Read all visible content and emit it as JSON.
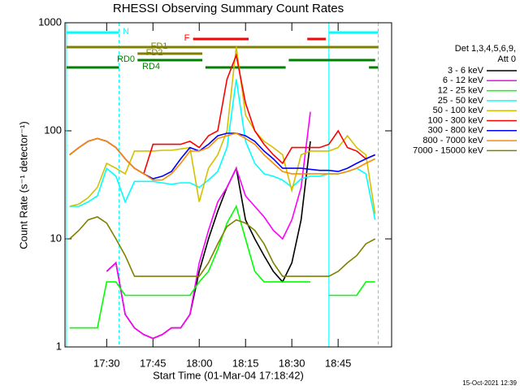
{
  "chart_data": {
    "type": "line",
    "title": "RHESSI Observing Summary Count Rates",
    "x_label": "Start Time (01-Mar-04 17:18:42)",
    "y_label": "Count Rate (s⁻¹ detector⁻¹)",
    "legend_header": [
      "Det 1,3,4,5,6,9,",
      "Att 0"
    ],
    "timestamp": "15-Oct-2021 12:39",
    "log_y": true,
    "xlim": [
      "17:16:30",
      "19:02:20"
    ],
    "xticks": [
      "17:30",
      "17:45",
      "18:00",
      "18:15",
      "18:30",
      "18:45"
    ],
    "ylim": [
      1,
      1000
    ],
    "yticks": [
      1,
      10,
      100,
      1000
    ],
    "x": [
      "17:18",
      "17:21",
      "17:24",
      "17:27",
      "17:30",
      "17:33",
      "17:36",
      "17:39",
      "17:42",
      "17:45",
      "17:48",
      "17:51",
      "17:54",
      "17:57",
      "18:00",
      "18:03",
      "18:06",
      "18:09",
      "18:12",
      "18:15",
      "18:18",
      "18:21",
      "18:24",
      "18:27",
      "18:30",
      "18:33",
      "18:36",
      "18:39",
      "18:42",
      "18:45",
      "18:48",
      "18:51",
      "18:54",
      "18:57"
    ],
    "series": [
      {
        "name": "3 - 6 keV",
        "color": "#000000",
        "values": [
          null,
          null,
          null,
          null,
          5,
          6,
          2,
          1.5,
          1.3,
          1.2,
          1.3,
          1.5,
          1.5,
          2,
          5,
          10,
          18,
          30,
          45,
          15,
          10,
          7,
          5,
          4,
          6,
          15,
          80,
          null,
          null,
          null,
          null,
          null,
          null,
          null
        ]
      },
      {
        "name": "6 - 12 keV",
        "color": "#ff00ff",
        "values": [
          null,
          null,
          null,
          null,
          5,
          6,
          2,
          1.5,
          1.3,
          1.2,
          1.3,
          1.5,
          1.5,
          2,
          6,
          12,
          22,
          30,
          45,
          25,
          20,
          16,
          12,
          10,
          15,
          30,
          150,
          null,
          null,
          null,
          null,
          null,
          null,
          null
        ]
      },
      {
        "name": "12 - 25 keV",
        "color": "#00ff00",
        "values": [
          1.5,
          1.5,
          1.5,
          1.5,
          4,
          4,
          3,
          3,
          3,
          3,
          3,
          3,
          3,
          3,
          4,
          5,
          8,
          14,
          20,
          10,
          5,
          4,
          4,
          4,
          4,
          4,
          4,
          null,
          3,
          3,
          3,
          3,
          4,
          4
        ]
      },
      {
        "name": "25 - 50 keV",
        "color": "#00ffff",
        "values": [
          20,
          20,
          22,
          25,
          45,
          38,
          22,
          34,
          34,
          34,
          33,
          32,
          33,
          33,
          30,
          35,
          42,
          70,
          300,
          80,
          50,
          40,
          38,
          35,
          30,
          36,
          38,
          38,
          40,
          40,
          42,
          45,
          40,
          15
        ]
      },
      {
        "name": "50 - 100 keV",
        "color": "#d4c000",
        "values": [
          20,
          21,
          24,
          30,
          50,
          45,
          40,
          65,
          65,
          65,
          66,
          66,
          68,
          70,
          22,
          45,
          60,
          100,
          600,
          140,
          100,
          80,
          70,
          60,
          28,
          60,
          65,
          65,
          65,
          70,
          90,
          70,
          60,
          17
        ]
      },
      {
        "name": "100 - 300 keV",
        "color": "#ff0000",
        "values": [
          60,
          70,
          80,
          85,
          80,
          70,
          55,
          45,
          40,
          75,
          75,
          75,
          75,
          80,
          70,
          90,
          100,
          300,
          500,
          180,
          100,
          75,
          60,
          50,
          70,
          70,
          70,
          70,
          75,
          100,
          70,
          65,
          55,
          60
        ]
      },
      {
        "name": "300 - 800 keV",
        "color": "#0000ff",
        "values": [
          60,
          70,
          80,
          85,
          80,
          70,
          55,
          45,
          40,
          36,
          38,
          42,
          55,
          70,
          65,
          75,
          90,
          95,
          95,
          90,
          80,
          65,
          55,
          45,
          45,
          45,
          44,
          43,
          43,
          42,
          45,
          50,
          55,
          60
        ]
      },
      {
        "name": "800 - 7000 keV",
        "color": "#ff8c00",
        "values": [
          60,
          70,
          80,
          85,
          80,
          70,
          55,
          45,
          40,
          35,
          35,
          40,
          50,
          65,
          65,
          70,
          85,
          90,
          95,
          85,
          75,
          60,
          50,
          42,
          40,
          40,
          40,
          40,
          40,
          40,
          42,
          45,
          50,
          55
        ]
      },
      {
        "name": "7000 - 15000 keV",
        "color": "#808000",
        "values": [
          10,
          12,
          15,
          16,
          14,
          10,
          7,
          4.5,
          4.5,
          4.5,
          4.5,
          4.5,
          4.5,
          4.5,
          4.5,
          6,
          9,
          13,
          15,
          14,
          12,
          9,
          6,
          4.5,
          4.5,
          4.5,
          4.5,
          4.5,
          4.5,
          5,
          6,
          7,
          9,
          10
        ]
      }
    ],
    "flags": [
      {
        "name": "N",
        "color": "#00ffff",
        "intervals": [
          [
            "17:17",
            "17:34"
          ],
          [
            "18:42",
            "18:58"
          ]
        ]
      },
      {
        "name": "F",
        "color": "#ff0000",
        "intervals": [
          [
            "17:58",
            "18:16"
          ],
          [
            "18:35",
            "18:41"
          ]
        ]
      },
      {
        "name": "FD1",
        "color": "#808000",
        "intervals": [
          [
            "17:17",
            "18:58"
          ]
        ]
      },
      {
        "name": "FD2",
        "color": "#808000",
        "intervals": [
          [
            "17:40",
            "18:01"
          ]
        ]
      },
      {
        "name": "RD0",
        "color": "#008000",
        "intervals": [
          [
            "17:40",
            "18:01"
          ],
          [
            "18:29",
            "18:57"
          ]
        ]
      },
      {
        "name": "RD4",
        "color": "#008000",
        "intervals": [
          [
            "17:17",
            "17:34"
          ],
          [
            "18:02",
            "18:28"
          ],
          [
            "18:55",
            "18:58"
          ]
        ]
      }
    ]
  }
}
